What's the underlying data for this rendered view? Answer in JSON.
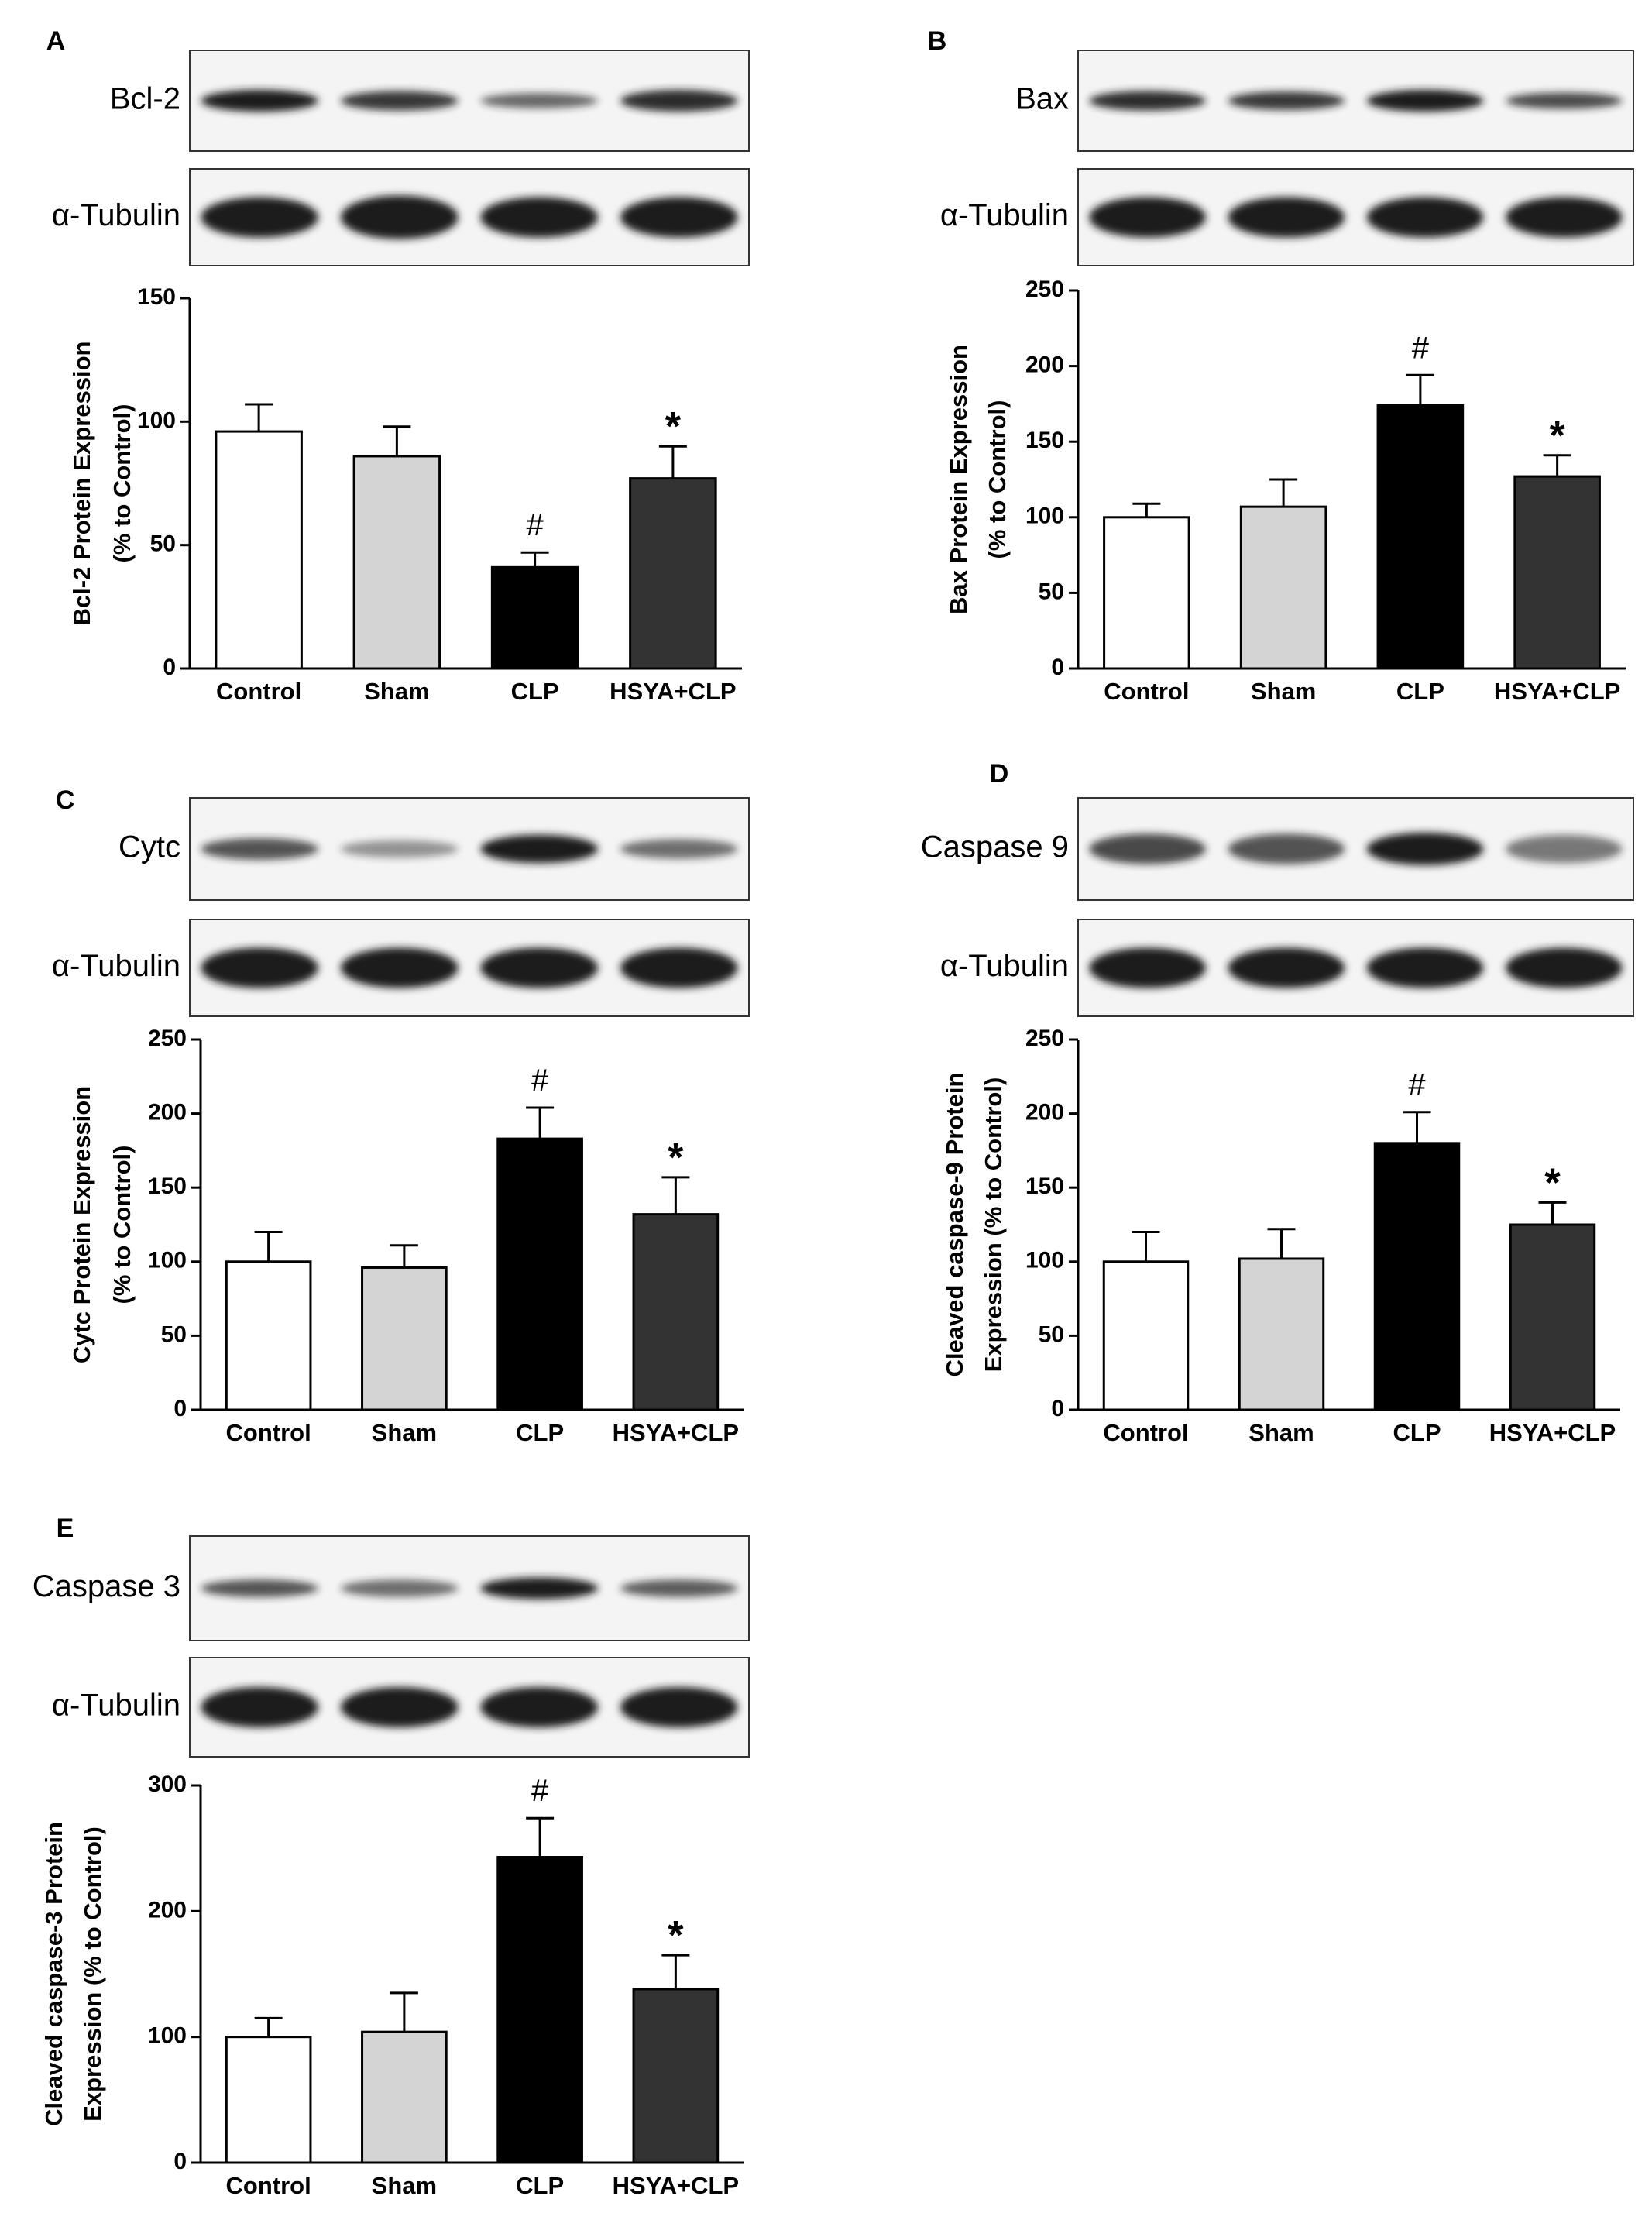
{
  "categories": [
    "Control",
    "Sham",
    "CLP",
    "HSYA+CLP"
  ],
  "colors": {
    "Control": "#ffffff",
    "Sham": "#d4d4d4",
    "CLP": "#000000",
    "HSYA+CLP": "#333333",
    "stroke": "#000000",
    "blot_bg": "#f4f4f4",
    "band": "#1a1a1a"
  },
  "chart_data": [
    {
      "type": "bar",
      "panel": "A",
      "categories": [
        "Control",
        "Sham",
        "CLP",
        "HSYA+CLP"
      ],
      "values": [
        96,
        86,
        41,
        77
      ],
      "errors": [
        11,
        12,
        6,
        13
      ],
      "marks": [
        "",
        "",
        "#",
        "*"
      ],
      "ylabel_lines": [
        "Bcl-2 Protein Expression",
        "(% to Control)"
      ],
      "ylim": [
        0,
        150
      ],
      "yticks": [
        0,
        50,
        100,
        150
      ],
      "blot_labels": [
        "Bcl-2",
        "α-Tubulin"
      ]
    },
    {
      "type": "bar",
      "panel": "B",
      "categories": [
        "Control",
        "Sham",
        "CLP",
        "HSYA+CLP"
      ],
      "values": [
        100,
        107,
        174,
        127
      ],
      "errors": [
        9,
        18,
        20,
        14
      ],
      "marks": [
        "",
        "",
        "#",
        "*"
      ],
      "ylabel_lines": [
        "Bax Protein Expression",
        "(% to Control)"
      ],
      "ylim": [
        0,
        250
      ],
      "yticks": [
        0,
        50,
        100,
        150,
        200,
        250
      ],
      "blot_labels": [
        "Bax",
        "α-Tubulin"
      ]
    },
    {
      "type": "bar",
      "panel": "C",
      "categories": [
        "Control",
        "Sham",
        "CLP",
        "HSYA+CLP"
      ],
      "values": [
        100,
        96,
        183,
        132
      ],
      "errors": [
        20,
        15,
        21,
        25
      ],
      "marks": [
        "",
        "",
        "#",
        "*"
      ],
      "ylabel_lines": [
        "Cytc Protein Expression",
        "(% to Control)"
      ],
      "ylim": [
        0,
        250
      ],
      "yticks": [
        0,
        50,
        100,
        150,
        200,
        250
      ],
      "blot_labels": [
        "Cytc",
        "α-Tubulin"
      ]
    },
    {
      "type": "bar",
      "panel": "D",
      "categories": [
        "Control",
        "Sham",
        "CLP",
        "HSYA+CLP"
      ],
      "values": [
        100,
        102,
        180,
        125
      ],
      "errors": [
        20,
        20,
        21,
        15
      ],
      "marks": [
        "",
        "",
        "#",
        "*"
      ],
      "ylabel_lines": [
        "Cleaved caspase-9 Protein",
        "Expression (% to Control)"
      ],
      "ylim": [
        0,
        250
      ],
      "yticks": [
        0,
        50,
        100,
        150,
        200,
        250
      ],
      "blot_labels": [
        "Caspase 9",
        "α-Tubulin"
      ]
    },
    {
      "type": "bar",
      "panel": "E",
      "categories": [
        "Control",
        "Sham",
        "CLP",
        "HSYA+CLP"
      ],
      "values": [
        100,
        104,
        243,
        138
      ],
      "errors": [
        15,
        31,
        31,
        27
      ],
      "marks": [
        "",
        "",
        "#",
        "*"
      ],
      "ylabel_lines": [
        "Cleaved caspase-3 Protein",
        "Expression (% to Control)"
      ],
      "ylim": [
        0,
        300
      ],
      "yticks": [
        0,
        100,
        200,
        300
      ],
      "blot_labels": [
        "Caspase 3",
        "α-Tubulin"
      ]
    }
  ]
}
